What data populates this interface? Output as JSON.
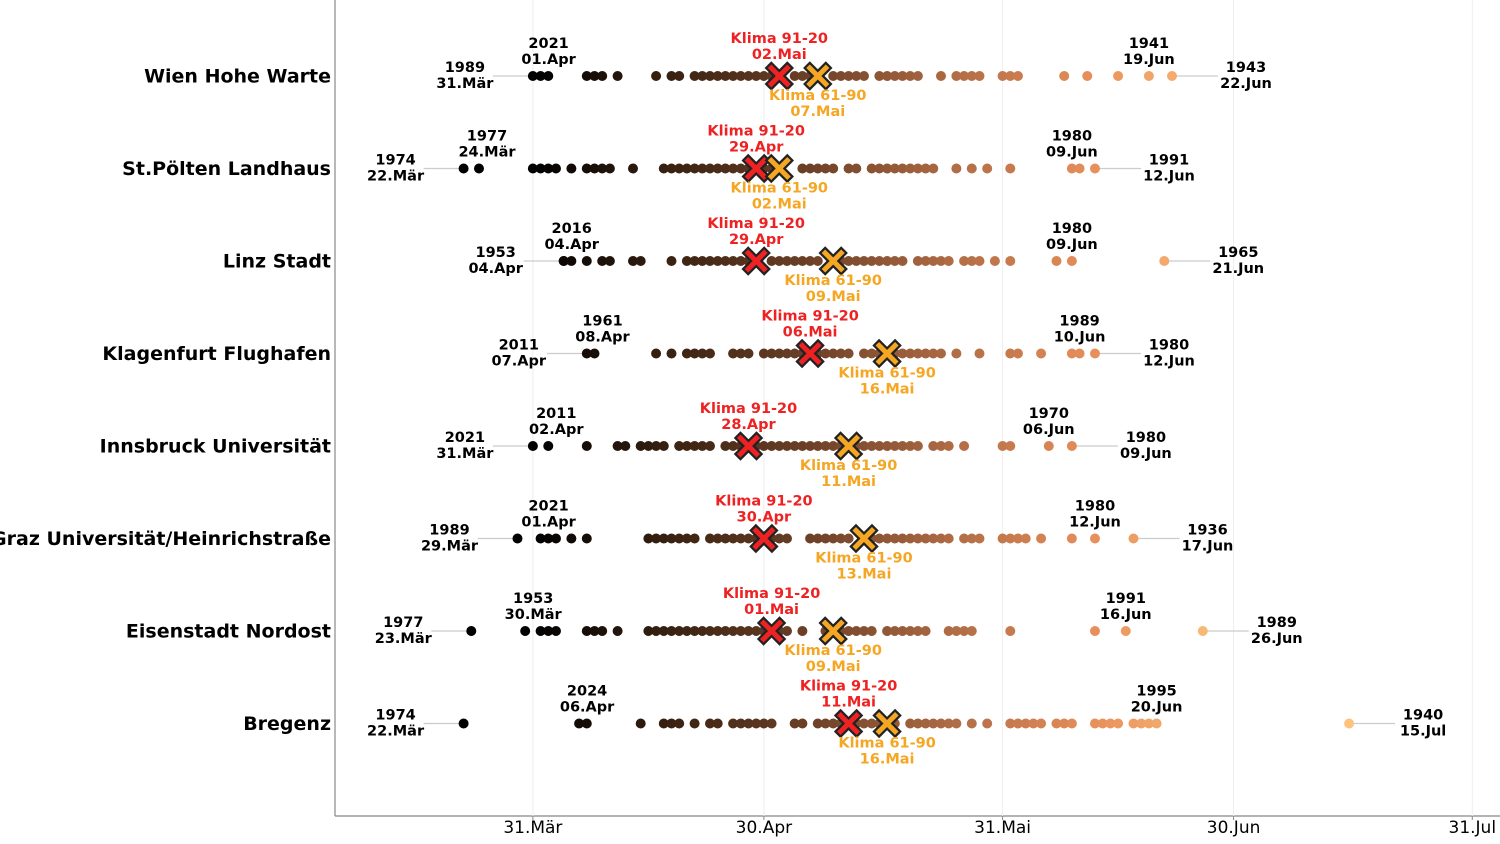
{
  "chart_data": {
    "type": "dotstrip",
    "xlim": [
      64.3,
      215.6
    ],
    "xticks": [
      {
        "value": 90,
        "label": "31.Mär"
      },
      {
        "value": 120,
        "label": "30.Apr"
      },
      {
        "value": 151,
        "label": "31.Mai"
      },
      {
        "value": 181,
        "label": "30.Jun"
      },
      {
        "value": 212,
        "label": "31.Jul"
      }
    ],
    "grid": true,
    "dot_colors": [
      "#000000",
      "#3a2212",
      "#6e4128",
      "#b06c45",
      "#e88f5b",
      "#fdc37d"
    ],
    "klima_9120_color": "#ee2222",
    "klima_6190_color": "#f5a623",
    "stations": [
      {
        "name": "Wien Hohe Warte",
        "days": [
          90,
          91,
          92,
          97,
          98,
          99,
          101,
          106,
          108,
          109,
          111,
          112,
          113,
          114,
          115,
          116,
          117,
          118,
          119,
          120,
          121,
          122,
          124,
          125,
          126,
          129,
          130,
          131,
          132,
          133,
          135,
          136,
          137,
          138,
          139,
          140,
          143,
          145,
          146,
          147,
          148,
          151,
          152,
          153,
          159,
          162,
          166,
          170,
          173
        ],
        "early": [
          {
            "year": 1989,
            "date": "31.Mär",
            "day": 90
          },
          {
            "year": 2021,
            "date": "01.Apr",
            "day": 91
          }
        ],
        "late": [
          {
            "year": 1941,
            "date": "19.Jun",
            "day": 170
          },
          {
            "year": 1943,
            "date": "22.Jun",
            "day": 173
          }
        ],
        "klima_9120": {
          "label": "Klima 91-20",
          "date": "02.Mai",
          "day": 122
        },
        "klima_6190": {
          "label": "Klima 61-90",
          "date": "07.Mai",
          "day": 127
        }
      },
      {
        "name": "St.Pölten Landhaus",
        "days": [
          81,
          83,
          90,
          91,
          92,
          93,
          95,
          97,
          98,
          99,
          100,
          103,
          107,
          108,
          109,
          110,
          111,
          112,
          113,
          114,
          115,
          116,
          117,
          118,
          119,
          120,
          121,
          125,
          126,
          127,
          128,
          129,
          131,
          132,
          134,
          135,
          136,
          137,
          138,
          139,
          140,
          141,
          142,
          145,
          147,
          149,
          152,
          160,
          161,
          163
        ],
        "early": [
          {
            "year": 1974,
            "date": "22.Mär",
            "day": 81
          },
          {
            "year": 1977,
            "date": "24.Mär",
            "day": 83
          }
        ],
        "late": [
          {
            "year": 1980,
            "date": "09.Jun",
            "day": 160
          },
          {
            "year": 1991,
            "date": "12.Jun",
            "day": 163
          }
        ],
        "klima_9120": {
          "label": "Klima 91-20",
          "date": "29.Apr",
          "day": 119
        },
        "klima_6190": {
          "label": "Klima 61-90",
          "date": "02.Mai",
          "day": 122
        }
      },
      {
        "name": "Linz Stadt",
        "days": [
          94,
          94,
          95,
          97,
          99,
          100,
          103,
          104,
          108,
          110,
          111,
          112,
          113,
          114,
          115,
          116,
          117,
          118,
          119,
          121,
          122,
          123,
          124,
          125,
          126,
          127,
          130,
          131,
          132,
          133,
          134,
          135,
          136,
          137,
          138,
          140,
          141,
          142,
          143,
          144,
          146,
          147,
          148,
          150,
          152,
          158,
          160,
          172
        ],
        "early": [
          {
            "year": 1953,
            "date": "04.Apr",
            "day": 94
          },
          {
            "year": 2016,
            "date": "04.Apr",
            "day": 94
          }
        ],
        "late": [
          {
            "year": 1980,
            "date": "09.Jun",
            "day": 160
          },
          {
            "year": 1965,
            "date": "21.Jun",
            "day": 172
          }
        ],
        "klima_9120": {
          "label": "Klima 91-20",
          "date": "29.Apr",
          "day": 119
        },
        "klima_6190": {
          "label": "Klima 61-90",
          "date": "09.Mai",
          "day": 129
        }
      },
      {
        "name": "Klagenfurt Flughafen",
        "days": [
          97,
          98,
          106,
          108,
          110,
          111,
          112,
          113,
          116,
          117,
          118,
          120,
          121,
          122,
          123,
          124,
          125,
          126,
          127,
          128,
          129,
          130,
          131,
          133,
          134,
          135,
          136,
          137,
          138,
          139,
          140,
          141,
          142,
          143,
          145,
          148,
          152,
          153,
          156,
          160,
          161,
          163
        ],
        "early": [
          {
            "year": 2011,
            "date": "07.Apr",
            "day": 97
          },
          {
            "year": 1961,
            "date": "08.Apr",
            "day": 98
          }
        ],
        "late": [
          {
            "year": 1989,
            "date": "10.Jun",
            "day": 161
          },
          {
            "year": 1980,
            "date": "12.Jun",
            "day": 163
          }
        ],
        "klima_9120": {
          "label": "Klima 91-20",
          "date": "06.Mai",
          "day": 126
        },
        "klima_6190": {
          "label": "Klima 61-90",
          "date": "16.Mai",
          "day": 136
        }
      },
      {
        "name": "Innsbruck Universität",
        "days": [
          90,
          92,
          97,
          101,
          102,
          104,
          105,
          106,
          107,
          109,
          110,
          111,
          112,
          113,
          115,
          116,
          117,
          118,
          119,
          120,
          121,
          122,
          123,
          124,
          125,
          126,
          127,
          128,
          129,
          130,
          132,
          133,
          134,
          135,
          136,
          137,
          138,
          139,
          140,
          142,
          143,
          144,
          146,
          151,
          152,
          157,
          160
        ],
        "early": [
          {
            "year": 2021,
            "date": "31.Mär",
            "day": 90
          },
          {
            "year": 2011,
            "date": "02.Apr",
            "day": 92
          }
        ],
        "late": [
          {
            "year": 1970,
            "date": "06.Jun",
            "day": 157
          },
          {
            "year": 1980,
            "date": "09.Jun",
            "day": 160
          }
        ],
        "klima_9120": {
          "label": "Klima 91-20",
          "date": "28.Apr",
          "day": 118
        },
        "klima_6190": {
          "label": "Klima 61-90",
          "date": "11.Mai",
          "day": 131
        }
      },
      {
        "name": "Graz Universität/Heinrichstraße",
        "days": [
          88,
          91,
          92,
          93,
          95,
          97,
          105,
          106,
          107,
          108,
          109,
          110,
          111,
          113,
          114,
          115,
          116,
          117,
          118,
          119,
          120,
          121,
          122,
          123,
          126,
          127,
          128,
          129,
          130,
          131,
          134,
          135,
          136,
          137,
          138,
          139,
          140,
          141,
          142,
          143,
          144,
          146,
          147,
          148,
          151,
          152,
          153,
          154,
          156,
          160,
          163,
          168
        ],
        "early": [
          {
            "year": 1989,
            "date": "29.Mär",
            "day": 88
          },
          {
            "year": 2021,
            "date": "01.Apr",
            "day": 91
          }
        ],
        "late": [
          {
            "year": 1980,
            "date": "12.Jun",
            "day": 163
          },
          {
            "year": 1936,
            "date": "17.Jun",
            "day": 168
          }
        ],
        "klima_9120": {
          "label": "Klima 91-20",
          "date": "30.Apr",
          "day": 120
        },
        "klima_6190": {
          "label": "Klima 61-90",
          "date": "13.Mai",
          "day": 133
        }
      },
      {
        "name": "Eisenstadt Nordost",
        "days": [
          82,
          89,
          91,
          92,
          93,
          97,
          98,
          99,
          101,
          105,
          106,
          107,
          108,
          109,
          110,
          111,
          112,
          113,
          114,
          115,
          116,
          117,
          118,
          119,
          120,
          121,
          122,
          123,
          125,
          128,
          129,
          130,
          131,
          132,
          133,
          134,
          136,
          137,
          138,
          139,
          140,
          141,
          144,
          145,
          146,
          147,
          152,
          163,
          167,
          177
        ],
        "early": [
          {
            "year": 1977,
            "date": "23.Mär",
            "day": 82
          },
          {
            "year": 1953,
            "date": "30.Mär",
            "day": 89
          }
        ],
        "late": [
          {
            "year": 1991,
            "date": "16.Jun",
            "day": 167
          },
          {
            "year": 1989,
            "date": "26.Jun",
            "day": 177
          }
        ],
        "klima_9120": {
          "label": "Klima 91-20",
          "date": "01.Mai",
          "day": 121
        },
        "klima_6190": {
          "label": "Klima 61-90",
          "date": "09.Mai",
          "day": 129
        }
      },
      {
        "name": "Bregenz",
        "days": [
          81,
          96,
          97,
          104,
          107,
          108,
          109,
          111,
          113,
          114,
          116,
          117,
          118,
          119,
          120,
          121,
          124,
          125,
          127,
          128,
          129,
          130,
          131,
          132,
          133,
          134,
          135,
          136,
          137,
          139,
          140,
          141,
          142,
          143,
          144,
          145,
          147,
          149,
          152,
          153,
          154,
          155,
          156,
          158,
          159,
          160,
          163,
          164,
          165,
          166,
          168,
          169,
          170,
          171,
          196
        ],
        "early": [
          {
            "year": 1974,
            "date": "22.Mär",
            "day": 81
          },
          {
            "year": 2024,
            "date": "06.Apr",
            "day": 96
          }
        ],
        "late": [
          {
            "year": 1995,
            "date": "20.Jun",
            "day": 171
          },
          {
            "year": 1940,
            "date": "15.Jul",
            "day": 196
          }
        ],
        "klima_9120": {
          "label": "Klima 91-20",
          "date": "11.Mai",
          "day": 131
        },
        "klima_6190": {
          "label": "Klima 61-90",
          "date": "16.Mai",
          "day": 136
        }
      }
    ]
  }
}
